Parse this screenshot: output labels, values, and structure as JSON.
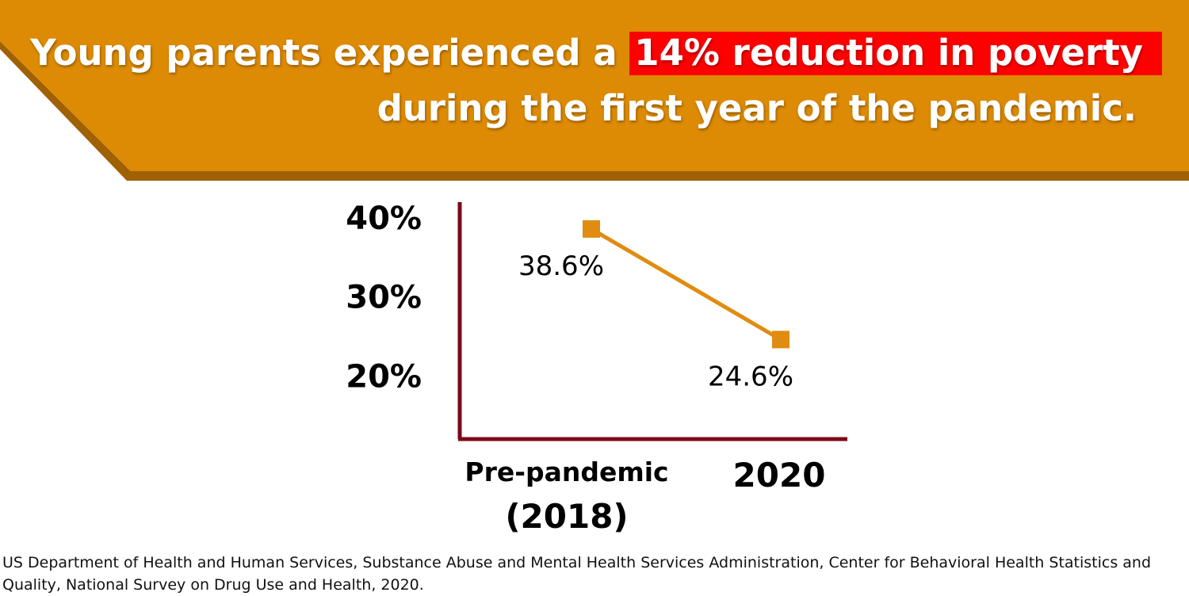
{
  "colors": {
    "banner": "#dd8a04",
    "banner_shadow": "#a06004",
    "highlight": "#ff0000",
    "axis": "#7a0a1a",
    "series": "#e08c10"
  },
  "headline": {
    "line1_prefix": "Young parents experienced a ",
    "line1_highlight": "14% reduction in poverty",
    "line2": "during the first year of the pandemic."
  },
  "chart_data": {
    "type": "line",
    "title": "",
    "xlabel": "",
    "ylabel": "",
    "categories": [
      "Pre-pandemic (2018)",
      "2020"
    ],
    "category_lines": [
      [
        "Pre-pandemic",
        "(2018)"
      ],
      [
        "2020"
      ]
    ],
    "ytick_labels": [
      "40%",
      "30%",
      "20%"
    ],
    "ytick_values": [
      40,
      30,
      20
    ],
    "ylim": [
      12,
      42
    ],
    "series": [
      {
        "values": [
          38.6,
          24.6
        ],
        "labels": [
          "38.6%",
          "24.6%"
        ]
      }
    ],
    "grid": false,
    "legend": "none"
  },
  "source": "US Department of Health and Human Services, Substance Abuse and Mental Health Services Administration, Center for Behavioral Health Statistics and Quality, National Survey on Drug Use and Health, 2020."
}
